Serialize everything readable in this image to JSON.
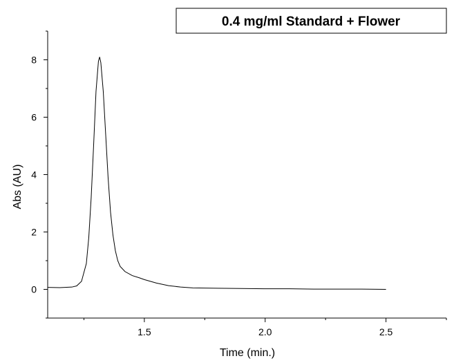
{
  "chart_data": {
    "type": "line",
    "title": "0.4 mg/ml Standard + Flower",
    "xlabel": "Time (min.)",
    "ylabel": "Abs (AU)",
    "xlim": [
      1.1,
      2.75
    ],
    "ylim": [
      -1,
      9
    ],
    "x_ticks": [
      1.5,
      2.0,
      2.5
    ],
    "x_tick_labels": [
      "1.5",
      "2.0",
      "2.5"
    ],
    "y_ticks": [
      0,
      2,
      4,
      6,
      8
    ],
    "y_tick_labels": [
      "0",
      "2",
      "4",
      "6",
      "8"
    ],
    "grid": false,
    "legend_position": "top-right",
    "series": [
      {
        "x": [
          1.1,
          1.15,
          1.2,
          1.22,
          1.24,
          1.26,
          1.27,
          1.28,
          1.29,
          1.3,
          1.31,
          1.315,
          1.32,
          1.33,
          1.34,
          1.35,
          1.36,
          1.37,
          1.38,
          1.39,
          1.4,
          1.42,
          1.45,
          1.48,
          1.5,
          1.55,
          1.6,
          1.65,
          1.7,
          1.8,
          1.9,
          2.0,
          2.1,
          2.2,
          2.3,
          2.4,
          2.5
        ],
        "y": [
          0.07,
          0.06,
          0.08,
          0.12,
          0.28,
          0.9,
          1.8,
          3.2,
          5.0,
          6.9,
          7.95,
          8.1,
          7.9,
          6.9,
          5.4,
          3.9,
          2.7,
          1.9,
          1.35,
          1.0,
          0.8,
          0.62,
          0.48,
          0.4,
          0.34,
          0.22,
          0.13,
          0.08,
          0.05,
          0.04,
          0.03,
          0.02,
          0.02,
          0.01,
          0.01,
          0.01,
          0.0
        ]
      }
    ]
  }
}
